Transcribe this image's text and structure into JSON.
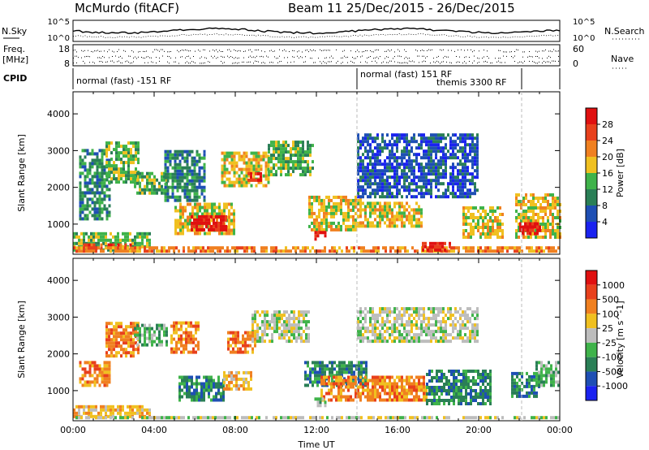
{
  "header": {
    "station": "McMurdo (fitACF)",
    "beam_and_dates": "Beam 11  25/Dec/2015 - 26/Dec/2015"
  },
  "noise_panel": {
    "left_label": "N.Sky",
    "right_label": "N.Search",
    "left_ticks": [
      "10^5",
      "10^0"
    ],
    "right_ticks": [
      "10^5",
      "10^0"
    ]
  },
  "freq_panel": {
    "left_label_top": "Freq.",
    "left_label_bottom": "[MHz]",
    "right_label": "Nave",
    "left_ticks": [
      "18",
      "8"
    ],
    "right_ticks": [
      "60",
      "0"
    ]
  },
  "cpid_panel": {
    "label": "CPID",
    "segments": [
      {
        "text": "normal (fast) -151 RF",
        "start_hour": 0,
        "end_hour": 14.0
      },
      {
        "text": "normal (fast) 151 RF",
        "start_hour": 14.0,
        "end_hour": 21.8
      },
      {
        "text": "themis 3300 RF",
        "start_hour": 14.0,
        "end_hour": 21.8
      }
    ],
    "boundary_hours": [
      14.0,
      21.8
    ]
  },
  "chart_data": [
    {
      "type": "heatmap",
      "title": "",
      "xlabel": "",
      "ylabel": "Slant Range [km]",
      "xlim_hours": [
        0,
        24
      ],
      "ylim": [
        180,
        4600
      ],
      "yticks": [
        1000,
        2000,
        3000,
        4000
      ],
      "colorbar": {
        "label": "Power [dB]",
        "ticks": [
          "4",
          "8",
          "12",
          "16",
          "20",
          "24",
          "28"
        ],
        "colors": [
          "#1a22f0",
          "#1e4fb4",
          "#2a7f56",
          "#3fb34a",
          "#f0c020",
          "#f08020",
          "#e8401c",
          "#e01010"
        ]
      },
      "regions": [
        {
          "h0": 0.0,
          "h1": 3.8,
          "r0": 250,
          "r1": 700,
          "level": 3
        },
        {
          "h0": 0.5,
          "h1": 3.0,
          "r0": 300,
          "r1": 450,
          "level": 6
        },
        {
          "h0": 0.0,
          "h1": 24.0,
          "r0": 220,
          "r1": 330,
          "level": 5
        },
        {
          "h0": 0.3,
          "h1": 1.8,
          "r0": 1100,
          "r1": 3000,
          "level": 2
        },
        {
          "h0": 1.6,
          "h1": 3.2,
          "r0": 2100,
          "r1": 3200,
          "level": 3
        },
        {
          "h0": 3.0,
          "h1": 4.6,
          "r0": 1800,
          "r1": 2400,
          "level": 3
        },
        {
          "h0": 5.0,
          "h1": 8.0,
          "r0": 700,
          "r1": 1500,
          "level": 4
        },
        {
          "h0": 5.8,
          "h1": 7.6,
          "r0": 800,
          "r1": 1200,
          "level": 7
        },
        {
          "h0": 4.5,
          "h1": 6.5,
          "r0": 1600,
          "r1": 3000,
          "level": 2
        },
        {
          "h0": 7.3,
          "h1": 9.6,
          "r0": 2000,
          "r1": 2900,
          "level": 4
        },
        {
          "h0": 8.6,
          "h1": 9.2,
          "r0": 2150,
          "r1": 2400,
          "level": 7
        },
        {
          "h0": 9.6,
          "h1": 11.8,
          "r0": 2300,
          "r1": 3200,
          "level": 3
        },
        {
          "h0": 11.6,
          "h1": 14.2,
          "r0": 800,
          "r1": 1700,
          "level": 4
        },
        {
          "h0": 11.9,
          "h1": 12.4,
          "r0": 550,
          "r1": 750,
          "level": 7
        },
        {
          "h0": 14.0,
          "h1": 17.2,
          "r0": 900,
          "r1": 1600,
          "level": 4
        },
        {
          "h0": 14.0,
          "h1": 20.0,
          "r0": 1700,
          "r1": 3400,
          "level": 1
        },
        {
          "h0": 17.2,
          "h1": 18.6,
          "r0": 250,
          "r1": 500,
          "level": 7
        },
        {
          "h0": 19.2,
          "h1": 21.2,
          "r0": 600,
          "r1": 1400,
          "level": 4
        },
        {
          "h0": 21.8,
          "h1": 24.0,
          "r0": 600,
          "r1": 1800,
          "level": 4
        },
        {
          "h0": 22.0,
          "h1": 23.0,
          "r0": 700,
          "r1": 1000,
          "level": 7
        }
      ]
    },
    {
      "type": "heatmap",
      "title": "",
      "xlabel": "Time UT",
      "ylabel": "Slant Range [km]",
      "xlim_hours": [
        0,
        24
      ],
      "ylim": [
        180,
        4600
      ],
      "xticks": [
        "00:00",
        "04:00",
        "08:00",
        "12:00",
        "16:00",
        "20:00",
        "00:00"
      ],
      "yticks": [
        1000,
        2000,
        3000,
        4000
      ],
      "colorbar": {
        "label": "Velocity [m s^-1]",
        "ticks": [
          "1000",
          "500",
          "100",
          "25",
          "-25",
          "-100",
          "-500",
          "-1000"
        ],
        "colors": [
          "#1a22f0",
          "#1e4fb4",
          "#2a7f56",
          "#3fb34a",
          "#bdbdbd",
          "#f0c020",
          "#f08020",
          "#e8401c",
          "#e01010"
        ]
      },
      "regions": [
        {
          "h0": 0.0,
          "h1": 3.8,
          "r0": 250,
          "r1": 600,
          "level": 5
        },
        {
          "h0": 0.0,
          "h1": 24.0,
          "r0": 220,
          "r1": 300,
          "level": 4
        },
        {
          "h0": 0.3,
          "h1": 1.8,
          "r0": 1100,
          "r1": 1800,
          "level": 6
        },
        {
          "h0": 1.6,
          "h1": 3.2,
          "r0": 1900,
          "r1": 2800,
          "level": 6
        },
        {
          "h0": 3.0,
          "h1": 4.6,
          "r0": 2200,
          "r1": 2800,
          "level": 3
        },
        {
          "h0": 4.8,
          "h1": 6.2,
          "r0": 2000,
          "r1": 2800,
          "level": 6
        },
        {
          "h0": 5.2,
          "h1": 7.4,
          "r0": 700,
          "r1": 1400,
          "level": 2
        },
        {
          "h0": 7.4,
          "h1": 8.8,
          "r0": 1000,
          "r1": 1500,
          "level": 5
        },
        {
          "h0": 8.8,
          "h1": 11.6,
          "r0": 2300,
          "r1": 3100,
          "level": 4
        },
        {
          "h0": 7.6,
          "h1": 9.0,
          "r0": 2000,
          "r1": 2600,
          "level": 6
        },
        {
          "h0": 11.4,
          "h1": 14.4,
          "r0": 1100,
          "r1": 1800,
          "level": 2
        },
        {
          "h0": 12.2,
          "h1": 17.4,
          "r0": 700,
          "r1": 1400,
          "level": 6
        },
        {
          "h0": 14.0,
          "h1": 20.0,
          "r0": 2300,
          "r1": 3200,
          "level": 4
        },
        {
          "h0": 17.4,
          "h1": 20.6,
          "r0": 600,
          "r1": 1500,
          "level": 2
        },
        {
          "h0": 21.6,
          "h1": 23.0,
          "r0": 800,
          "r1": 1500,
          "level": 2
        },
        {
          "h0": 22.8,
          "h1": 24.0,
          "r0": 1100,
          "r1": 1800,
          "level": 3
        },
        {
          "h0": 11.9,
          "h1": 12.4,
          "r0": 550,
          "r1": 750,
          "level": 3
        }
      ]
    }
  ]
}
